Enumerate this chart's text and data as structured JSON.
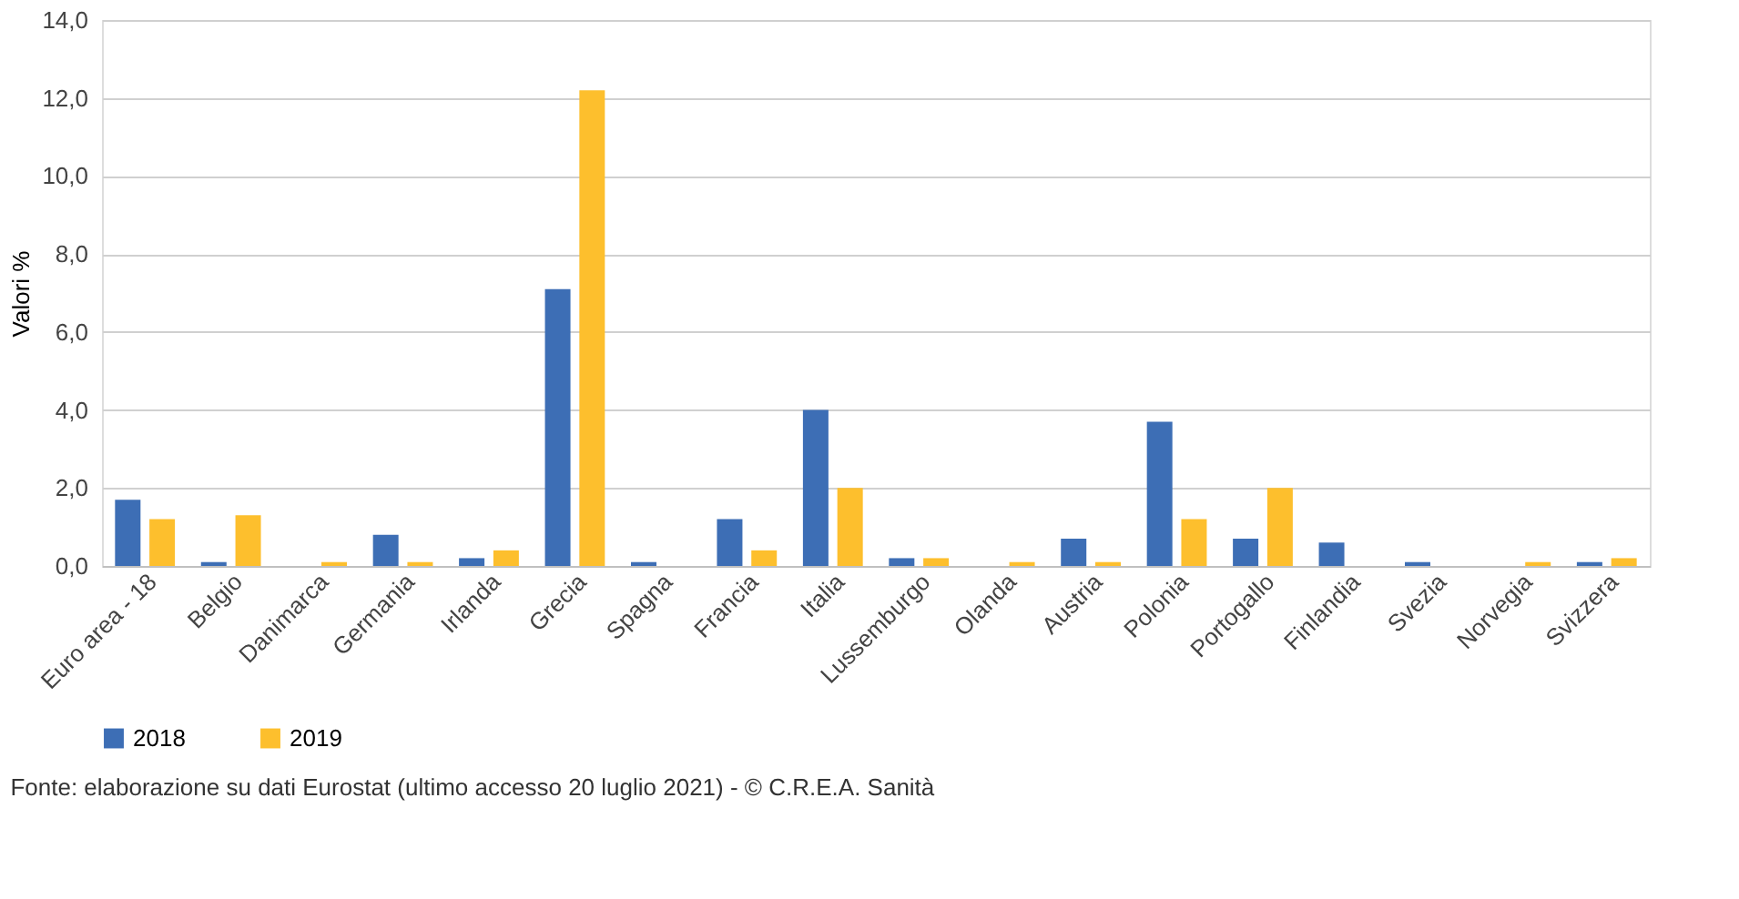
{
  "chart_data": {
    "type": "bar",
    "ylabel": "Valori %",
    "categories": [
      "Euro area - 18",
      "Belgio",
      "Danimarca",
      "Germania",
      "Irlanda",
      "Grecia",
      "Spagna",
      "Francia",
      "Italia",
      "Lussemburgo",
      "Olanda",
      "Austria",
      "Polonia",
      "Portogallo",
      "Finlandia",
      "Svezia",
      "Norvegia",
      "Svizzera"
    ],
    "series": [
      {
        "name": "2018",
        "color": "#3d6eb5",
        "values": [
          1.7,
          0.1,
          0.0,
          0.8,
          0.2,
          7.1,
          0.1,
          1.2,
          4.0,
          0.2,
          0.0,
          0.7,
          3.7,
          0.7,
          0.6,
          0.1,
          0.0,
          0.1
        ]
      },
      {
        "name": "2019",
        "color": "#fdbf2d",
        "values": [
          1.2,
          1.3,
          0.1,
          0.1,
          0.4,
          12.2,
          0.0,
          0.4,
          2.0,
          0.2,
          0.1,
          0.1,
          1.2,
          2.0,
          0.0,
          0.0,
          0.1,
          0.2
        ]
      }
    ],
    "ylim": [
      0,
      14
    ],
    "yticks": [
      {
        "value": 0,
        "label": "0,0"
      },
      {
        "value": 2,
        "label": "2,0"
      },
      {
        "value": 4,
        "label": "4,0"
      },
      {
        "value": 6,
        "label": "6,0"
      },
      {
        "value": 8,
        "label": "8,0"
      },
      {
        "value": 10,
        "label": "10,0"
      },
      {
        "value": 12,
        "label": "12,0"
      },
      {
        "value": 14,
        "label": "14,0"
      }
    ],
    "grid": "y",
    "legend": "bottom",
    "annotations": [
      "Fonte: elaborazione su dati Eurostat (ultimo accesso 20 luglio 2021) - © C.R.E.A. Sanità"
    ]
  }
}
